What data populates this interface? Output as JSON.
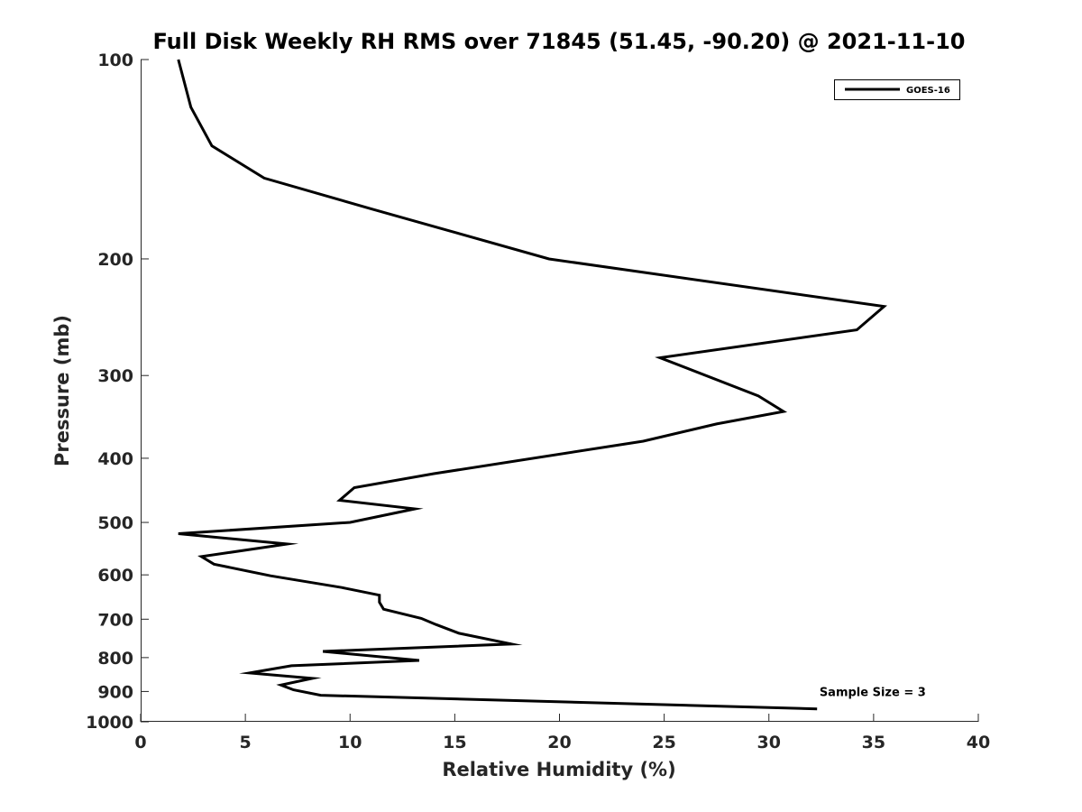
{
  "chart_data": {
    "type": "line",
    "title": "Full Disk Weekly RH RMS over 71845 (51.45, -90.20) @ 2021-11-10",
    "xlabel": "Relative Humidity (%)",
    "ylabel": "Pressure (mb)",
    "xlim": [
      0,
      40
    ],
    "ylim": [
      100,
      1000
    ],
    "yscale": "log",
    "y_reversed": true,
    "grid": false,
    "legend_position": "top-right",
    "x_ticks": [
      "0",
      "5",
      "10",
      "15",
      "20",
      "25",
      "30",
      "35",
      "40"
    ],
    "y_ticks": [
      "100",
      "200",
      "300",
      "400",
      "500",
      "600",
      "700",
      "800",
      "900",
      "1000"
    ],
    "series": [
      {
        "name": "GOES-16",
        "color": "#000000",
        "points": [
          {
            "x": 1.8,
            "y": 100
          },
          {
            "x": 2.4,
            "y": 118
          },
          {
            "x": 3.4,
            "y": 135
          },
          {
            "x": 5.9,
            "y": 151
          },
          {
            "x": 11.0,
            "y": 168
          },
          {
            "x": 19.5,
            "y": 200
          },
          {
            "x": 35.5,
            "y": 236
          },
          {
            "x": 34.2,
            "y": 256
          },
          {
            "x": 24.8,
            "y": 282
          },
          {
            "x": 29.5,
            "y": 322
          },
          {
            "x": 30.7,
            "y": 340
          },
          {
            "x": 27.5,
            "y": 355
          },
          {
            "x": 24.0,
            "y": 377
          },
          {
            "x": 14.0,
            "y": 422
          },
          {
            "x": 10.2,
            "y": 443
          },
          {
            "x": 9.5,
            "y": 463
          },
          {
            "x": 13.1,
            "y": 477
          },
          {
            "x": 10.0,
            "y": 500
          },
          {
            "x": 1.8,
            "y": 520
          },
          {
            "x": 7.0,
            "y": 539
          },
          {
            "x": 2.9,
            "y": 563
          },
          {
            "x": 3.5,
            "y": 578
          },
          {
            "x": 6.2,
            "y": 602
          },
          {
            "x": 9.6,
            "y": 627
          },
          {
            "x": 11.4,
            "y": 644
          },
          {
            "x": 11.4,
            "y": 660
          },
          {
            "x": 11.6,
            "y": 676
          },
          {
            "x": 13.4,
            "y": 698
          },
          {
            "x": 14.1,
            "y": 713
          },
          {
            "x": 15.2,
            "y": 735
          },
          {
            "x": 17.7,
            "y": 763
          },
          {
            "x": 8.7,
            "y": 783
          },
          {
            "x": 13.3,
            "y": 808
          },
          {
            "x": 7.2,
            "y": 823
          },
          {
            "x": 5.2,
            "y": 844
          },
          {
            "x": 8.2,
            "y": 860
          },
          {
            "x": 6.7,
            "y": 880
          },
          {
            "x": 7.3,
            "y": 895
          },
          {
            "x": 8.6,
            "y": 912
          },
          {
            "x": 32.3,
            "y": 956
          }
        ]
      }
    ],
    "annotations": [
      {
        "text": "Sample Size = 3",
        "x": 32.5,
        "y": 900
      }
    ]
  }
}
